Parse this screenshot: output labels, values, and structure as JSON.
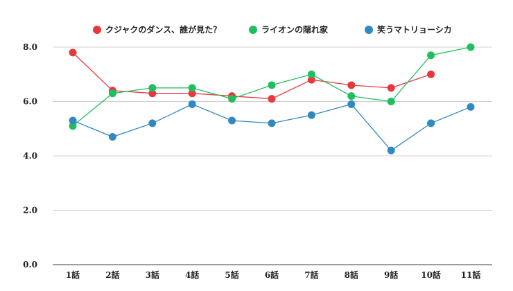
{
  "chart_data": {
    "type": "line",
    "title": "",
    "xlabel": "",
    "ylabel": "",
    "categories": [
      "1話",
      "2話",
      "3話",
      "4話",
      "5話",
      "6話",
      "7話",
      "8話",
      "9話",
      "10話",
      "11話"
    ],
    "ylim": [
      0,
      8.0
    ],
    "yticks": [
      "0.0",
      "2.0",
      "4.0",
      "6.0",
      "8.0"
    ],
    "grid": true,
    "legend_position": "top",
    "series": [
      {
        "name": "クジャクのダンス、誰が見た？",
        "color": "#e8383d",
        "values": [
          7.8,
          6.4,
          6.3,
          6.3,
          6.2,
          6.1,
          6.8,
          6.6,
          6.5,
          7.0,
          null
        ]
      },
      {
        "name": "ライオンの隠れ家",
        "color": "#1fbf5e",
        "values": [
          5.1,
          6.3,
          6.5,
          6.5,
          6.1,
          6.6,
          7.0,
          6.2,
          6.0,
          7.7,
          8.0
        ]
      },
      {
        "name": "笑うマトリョーシカ",
        "color": "#3189c2",
        "values": [
          5.3,
          4.7,
          5.2,
          5.9,
          5.3,
          5.2,
          5.5,
          5.9,
          4.2,
          5.2,
          5.8
        ]
      }
    ]
  }
}
